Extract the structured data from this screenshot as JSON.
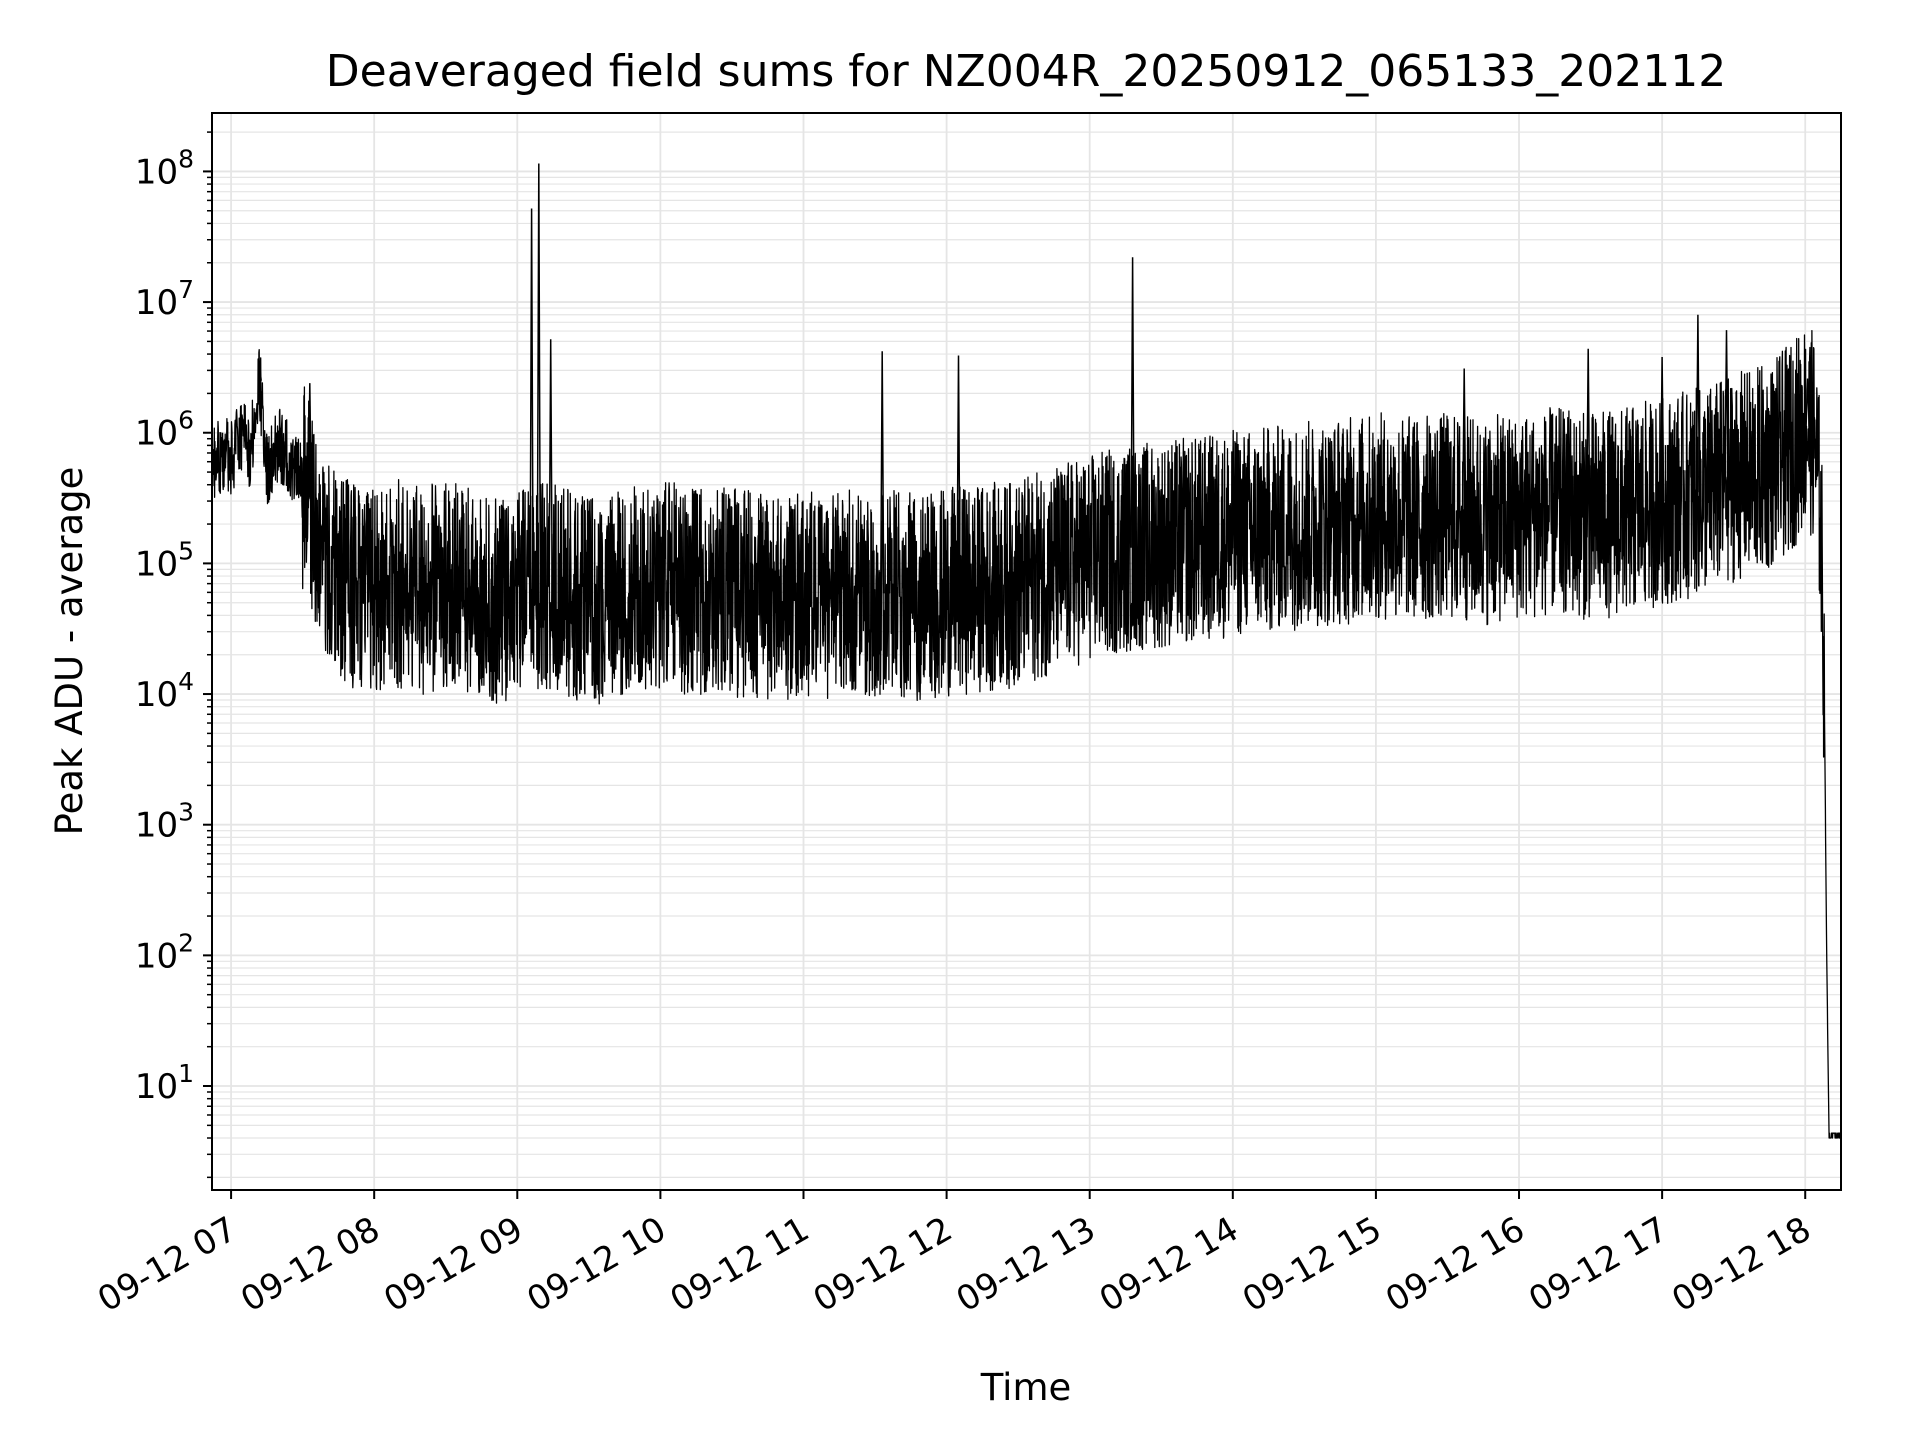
{
  "chart_data": {
    "type": "line",
    "title": "Deaveraged field sums for NZ004R_20250912_065133_202112",
    "xlabel": "Time",
    "ylabel": "Peak ADU - average",
    "yscale": "log",
    "ylim": [
      1.6,
      280000000
    ],
    "xlim": [
      "09-12 06:52",
      "09-12 18:15"
    ],
    "grid": true,
    "line_color": "#000000",
    "grid_color": "#e5e5e5",
    "x_ticks": [
      {
        "time": "09-12 07:00",
        "label": "09-12 07"
      },
      {
        "time": "09-12 08:00",
        "label": "09-12 08"
      },
      {
        "time": "09-12 09:00",
        "label": "09-12 09"
      },
      {
        "time": "09-12 10:00",
        "label": "09-12 10"
      },
      {
        "time": "09-12 11:00",
        "label": "09-12 11"
      },
      {
        "time": "09-12 12:00",
        "label": "09-12 12"
      },
      {
        "time": "09-12 13:00",
        "label": "09-12 13"
      },
      {
        "time": "09-12 14:00",
        "label": "09-12 14"
      },
      {
        "time": "09-12 15:00",
        "label": "09-12 15"
      },
      {
        "time": "09-12 16:00",
        "label": "09-12 16"
      },
      {
        "time": "09-12 17:00",
        "label": "09-12 17"
      },
      {
        "time": "09-12 18:00",
        "label": "09-12 18"
      }
    ],
    "y_ticks": [
      {
        "value": 10,
        "base": "10",
        "exp": "1"
      },
      {
        "value": 100,
        "base": "10",
        "exp": "2"
      },
      {
        "value": 1000,
        "base": "10",
        "exp": "3"
      },
      {
        "value": 10000,
        "base": "10",
        "exp": "4"
      },
      {
        "value": 100000,
        "base": "10",
        "exp": "5"
      },
      {
        "value": 1000000,
        "base": "10",
        "exp": "6"
      },
      {
        "value": 10000000,
        "base": "10",
        "exp": "7"
      },
      {
        "value": 100000000,
        "base": "10",
        "exp": "8"
      }
    ],
    "series": [
      {
        "points": [
          [
            "09-12 06:52",
            600000
          ],
          [
            "09-12 06:55",
            650000
          ],
          [
            "09-12 06:58",
            700000
          ],
          [
            "09-12 07:00",
            620000
          ],
          [
            "09-12 07:05",
            1000000
          ],
          [
            "09-12 07:08",
            700000
          ],
          [
            "09-12 07:12",
            2500000
          ],
          [
            "09-12 07:15",
            500000
          ],
          [
            "09-12 07:20",
            800000
          ],
          [
            "09-12 07:25",
            600000
          ],
          [
            "09-12 07:30",
            400000
          ],
          [
            "09-12 07:35",
            200000
          ],
          [
            "09-12 07:40",
            100000
          ],
          [
            "09-12 07:45",
            80000
          ],
          [
            "09-12 07:50",
            70000
          ],
          [
            "09-12 08:00",
            60000
          ],
          [
            "09-12 08:10",
            70000
          ],
          [
            "09-12 08:20",
            60000
          ],
          [
            "09-12 08:30",
            70000
          ],
          [
            "09-12 08:40",
            60000
          ],
          [
            "09-12 08:50",
            50000
          ],
          [
            "09-12 09:00",
            60000
          ],
          [
            "09-12 09:10",
            70000
          ],
          [
            "09-12 09:20",
            60000
          ],
          [
            "09-12 09:30",
            50000
          ],
          [
            "09-12 09:45",
            60000
          ],
          [
            "09-12 10:00",
            70000
          ],
          [
            "09-12 10:15",
            60000
          ],
          [
            "09-12 10:30",
            60000
          ],
          [
            "09-12 10:45",
            55000
          ],
          [
            "09-12 11:00",
            55000
          ],
          [
            "09-12 11:15",
            60000
          ],
          [
            "09-12 11:30",
            60000
          ],
          [
            "09-12 11:45",
            55000
          ],
          [
            "09-12 12:00",
            60000
          ],
          [
            "09-12 12:15",
            65000
          ],
          [
            "09-12 12:30",
            70000
          ],
          [
            "09-12 12:45",
            90000
          ],
          [
            "09-12 13:00",
            110000
          ],
          [
            "09-12 13:15",
            130000
          ],
          [
            "09-12 13:30",
            140000
          ],
          [
            "09-12 13:45",
            150000
          ],
          [
            "09-12 14:00",
            170000
          ],
          [
            "09-12 14:15",
            180000
          ],
          [
            "09-12 14:30",
            200000
          ],
          [
            "09-12 14:45",
            210000
          ],
          [
            "09-12 15:00",
            230000
          ],
          [
            "09-12 15:15",
            220000
          ],
          [
            "09-12 15:30",
            230000
          ],
          [
            "09-12 15:45",
            210000
          ],
          [
            "09-12 16:00",
            230000
          ],
          [
            "09-12 16:15",
            250000
          ],
          [
            "09-12 16:30",
            230000
          ],
          [
            "09-12 16:45",
            250000
          ],
          [
            "09-12 17:00",
            300000
          ],
          [
            "09-12 17:15",
            350000
          ],
          [
            "09-12 17:30",
            450000
          ],
          [
            "09-12 17:45",
            550000
          ],
          [
            "09-12 17:55",
            800000
          ],
          [
            "09-12 18:00",
            1200000
          ],
          [
            "09-12 18:04",
            900000
          ],
          [
            "09-12 18:06",
            300000
          ],
          [
            "09-12 18:07",
            100000
          ],
          [
            "09-12 18:08",
            10000
          ],
          [
            "09-12 18:09",
            100
          ],
          [
            "09-12 18:10",
            4
          ],
          [
            "09-12 18:15",
            4
          ]
        ],
        "spikes": [
          [
            "09-12 07:12",
            3200000
          ],
          [
            "09-12 07:33",
            2400000
          ],
          [
            "09-12 09:06",
            52000000
          ],
          [
            "09-12 09:09",
            115000000
          ],
          [
            "09-12 09:14",
            5200000
          ],
          [
            "09-12 11:33",
            4200000
          ],
          [
            "09-12 12:05",
            3900000
          ],
          [
            "09-12 13:18",
            22000000
          ],
          [
            "09-12 15:37",
            3100000
          ],
          [
            "09-12 16:29",
            4400000
          ],
          [
            "09-12 17:00",
            3800000
          ],
          [
            "09-12 17:15",
            8000000
          ],
          [
            "09-12 17:27",
            6100000
          ],
          [
            "09-12 17:53",
            3100000
          ],
          [
            "09-12 18:01",
            2600000
          ]
        ]
      }
    ]
  }
}
